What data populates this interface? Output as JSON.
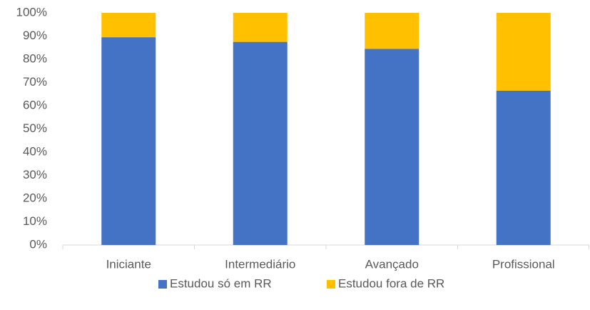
{
  "chart_data": {
    "type": "stacked_bar",
    "categories": [
      "Iniciante",
      "Intermediário",
      "Avançado",
      "Profissional"
    ],
    "series": [
      {
        "name": "Estudou só em RR",
        "color": "#4472c4",
        "values": [
          89.5,
          87.5,
          84.5,
          66.5
        ]
      },
      {
        "name": "Estudou fora de RR",
        "color": "#ffc000",
        "values": [
          10.5,
          12.5,
          15.5,
          33.5
        ]
      }
    ],
    "ylim": [
      0,
      100
    ],
    "yticks": [
      {
        "value": 0,
        "label": "0%"
      },
      {
        "value": 10,
        "label": "10%"
      },
      {
        "value": 20,
        "label": "20%"
      },
      {
        "value": 30,
        "label": "30%"
      },
      {
        "value": 40,
        "label": "40%"
      },
      {
        "value": 50,
        "label": "50%"
      },
      {
        "value": 60,
        "label": "60%"
      },
      {
        "value": 70,
        "label": "70%"
      },
      {
        "value": 80,
        "label": "80%"
      },
      {
        "value": 90,
        "label": "90%"
      },
      {
        "value": 100,
        "label": "100%"
      }
    ],
    "grid": false,
    "legend": "bottom"
  }
}
